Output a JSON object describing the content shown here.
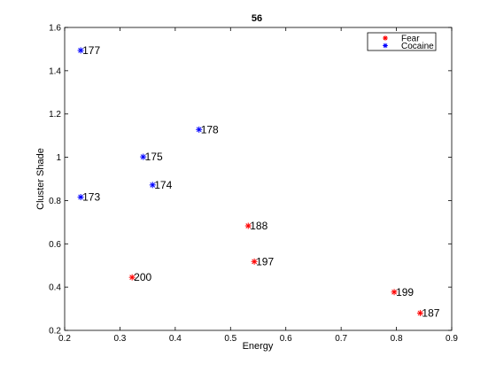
{
  "chart_data": {
    "type": "scatter",
    "title": "56",
    "xlabel": "Energy",
    "ylabel": "Cluster Shade",
    "xlim": [
      0.2,
      0.9
    ],
    "ylim": [
      0.2,
      1.6
    ],
    "xticks": [
      "0.2",
      "0.3",
      "0.4",
      "0.5",
      "0.6",
      "0.7",
      "0.8",
      "0.9"
    ],
    "yticks": [
      "0.2",
      "0.4",
      "0.6",
      "0.8",
      "1",
      "1.2",
      "1.4",
      "1.6"
    ],
    "grid": false,
    "legend_position": "top-right",
    "series": [
      {
        "name": "Fear",
        "color": "#ff0000",
        "marker": "asterisk",
        "points": [
          {
            "x": 0.322,
            "y": 0.445,
            "label": "200"
          },
          {
            "x": 0.532,
            "y": 0.683,
            "label": "188"
          },
          {
            "x": 0.543,
            "y": 0.518,
            "label": "197"
          },
          {
            "x": 0.796,
            "y": 0.377,
            "label": "199"
          },
          {
            "x": 0.843,
            "y": 0.28,
            "label": "187"
          }
        ]
      },
      {
        "name": "Cocaine",
        "color": "#0000ff",
        "marker": "asterisk",
        "points": [
          {
            "x": 0.229,
            "y": 1.494,
            "label": "177"
          },
          {
            "x": 0.443,
            "y": 1.128,
            "label": "178"
          },
          {
            "x": 0.342,
            "y": 1.002,
            "label": "175"
          },
          {
            "x": 0.359,
            "y": 0.872,
            "label": "174"
          },
          {
            "x": 0.229,
            "y": 0.816,
            "label": "173"
          }
        ]
      }
    ]
  }
}
